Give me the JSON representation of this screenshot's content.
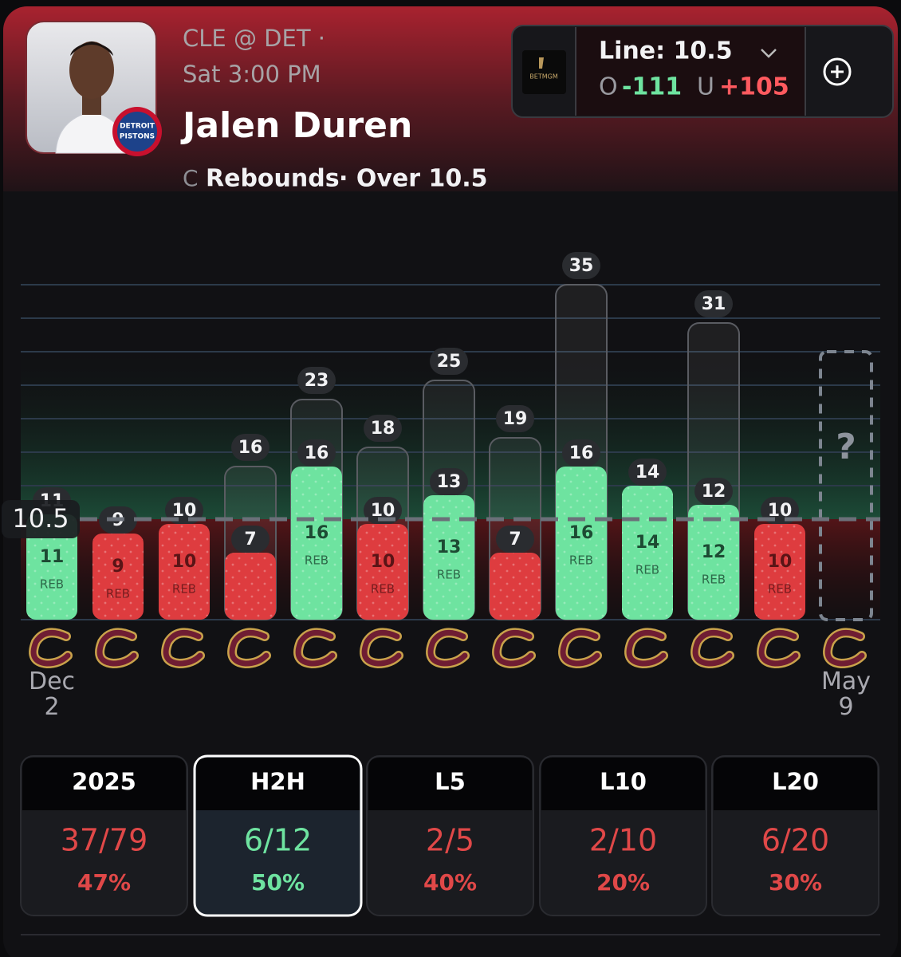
{
  "header": {
    "matchup": "CLE @ DET ·",
    "time": "Sat 3:00 PM",
    "player": "Jalen Duren",
    "position": "C",
    "stat": "Rebounds",
    "pick": "· Over 10.5",
    "team_badge": [
      "DETROIT",
      "PISTONS"
    ]
  },
  "line_box": {
    "line": "Line: 10.5",
    "sportsbook": "BETMGM",
    "over_label": "O",
    "over_odds": "-111",
    "under_label": "U",
    "under_odds": "+105"
  },
  "chart_data": {
    "type": "bar",
    "categories": [
      "Dec 2",
      null,
      null,
      null,
      null,
      null,
      null,
      null,
      null,
      null,
      null,
      null,
      "May 9"
    ],
    "series": [
      {
        "color": "#3a3c40",
        "values": [
          11,
          9,
          10,
          16,
          23,
          18,
          25,
          19,
          35,
          14,
          31,
          10,
          null
        ]
      },
      {
        "name": "REB",
        "values": [
          11,
          9,
          10,
          7,
          16,
          10,
          13,
          7,
          16,
          14,
          12,
          10,
          null
        ]
      }
    ],
    "over_color": "#6ee3a0",
    "under_color": "#de3c3f",
    "line": 10.5,
    "upcoming_label": "?",
    "ylim": [
      0,
      35
    ],
    "yticks": [
      14,
      17.5,
      21,
      24.5,
      28,
      31.5,
      35
    ],
    "grid": true
  },
  "splits": [
    {
      "label": "2025",
      "record": "37/79",
      "pct": "47%",
      "color": "#e04848"
    },
    {
      "label": "H2H",
      "record": "6/12",
      "pct": "50%",
      "color": "#6ee3a0"
    },
    {
      "label": "L5",
      "record": "2/5",
      "pct": "40%",
      "color": "#e04848"
    },
    {
      "label": "L10",
      "record": "2/10",
      "pct": "20%",
      "color": "#e04848"
    },
    {
      "label": "L20",
      "record": "6/20",
      "pct": "30%",
      "color": "#e04848"
    }
  ],
  "selected_split": 1
}
